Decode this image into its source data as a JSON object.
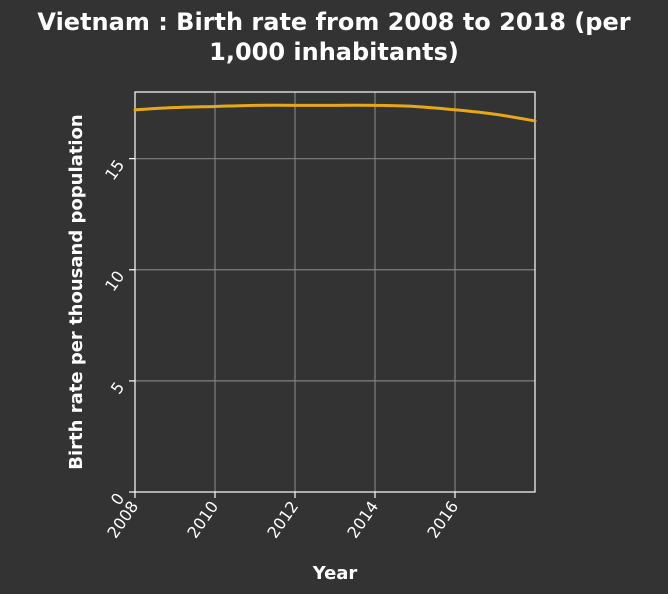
{
  "chart_data": {
    "type": "line",
    "title_lines": [
      "Vietnam : Birth rate from 2008 to 2018 (per",
      "1,000 inhabitants)"
    ],
    "xlabel": "Year",
    "ylabel": "Birth rate per thousand population",
    "xlim": [
      2008,
      2018
    ],
    "ylim": [
      0,
      18
    ],
    "xticks": [
      2008,
      2010,
      2012,
      2014,
      2016
    ],
    "yticks": [
      0,
      5,
      10,
      15
    ],
    "grid": true,
    "series": [
      {
        "color": "#e6a817",
        "x": [
          2008,
          2009,
          2010,
          2011,
          2012,
          2013,
          2014,
          2015,
          2016,
          2017,
          2018
        ],
        "y": [
          17.2,
          17.3,
          17.35,
          17.4,
          17.4,
          17.4,
          17.4,
          17.35,
          17.2,
          17.0,
          16.7
        ]
      }
    ]
  },
  "colors": {
    "background": "#333333",
    "grid": "#808080",
    "axis": "#ffffff",
    "text": "#ffffff",
    "line": "#e6a817"
  }
}
